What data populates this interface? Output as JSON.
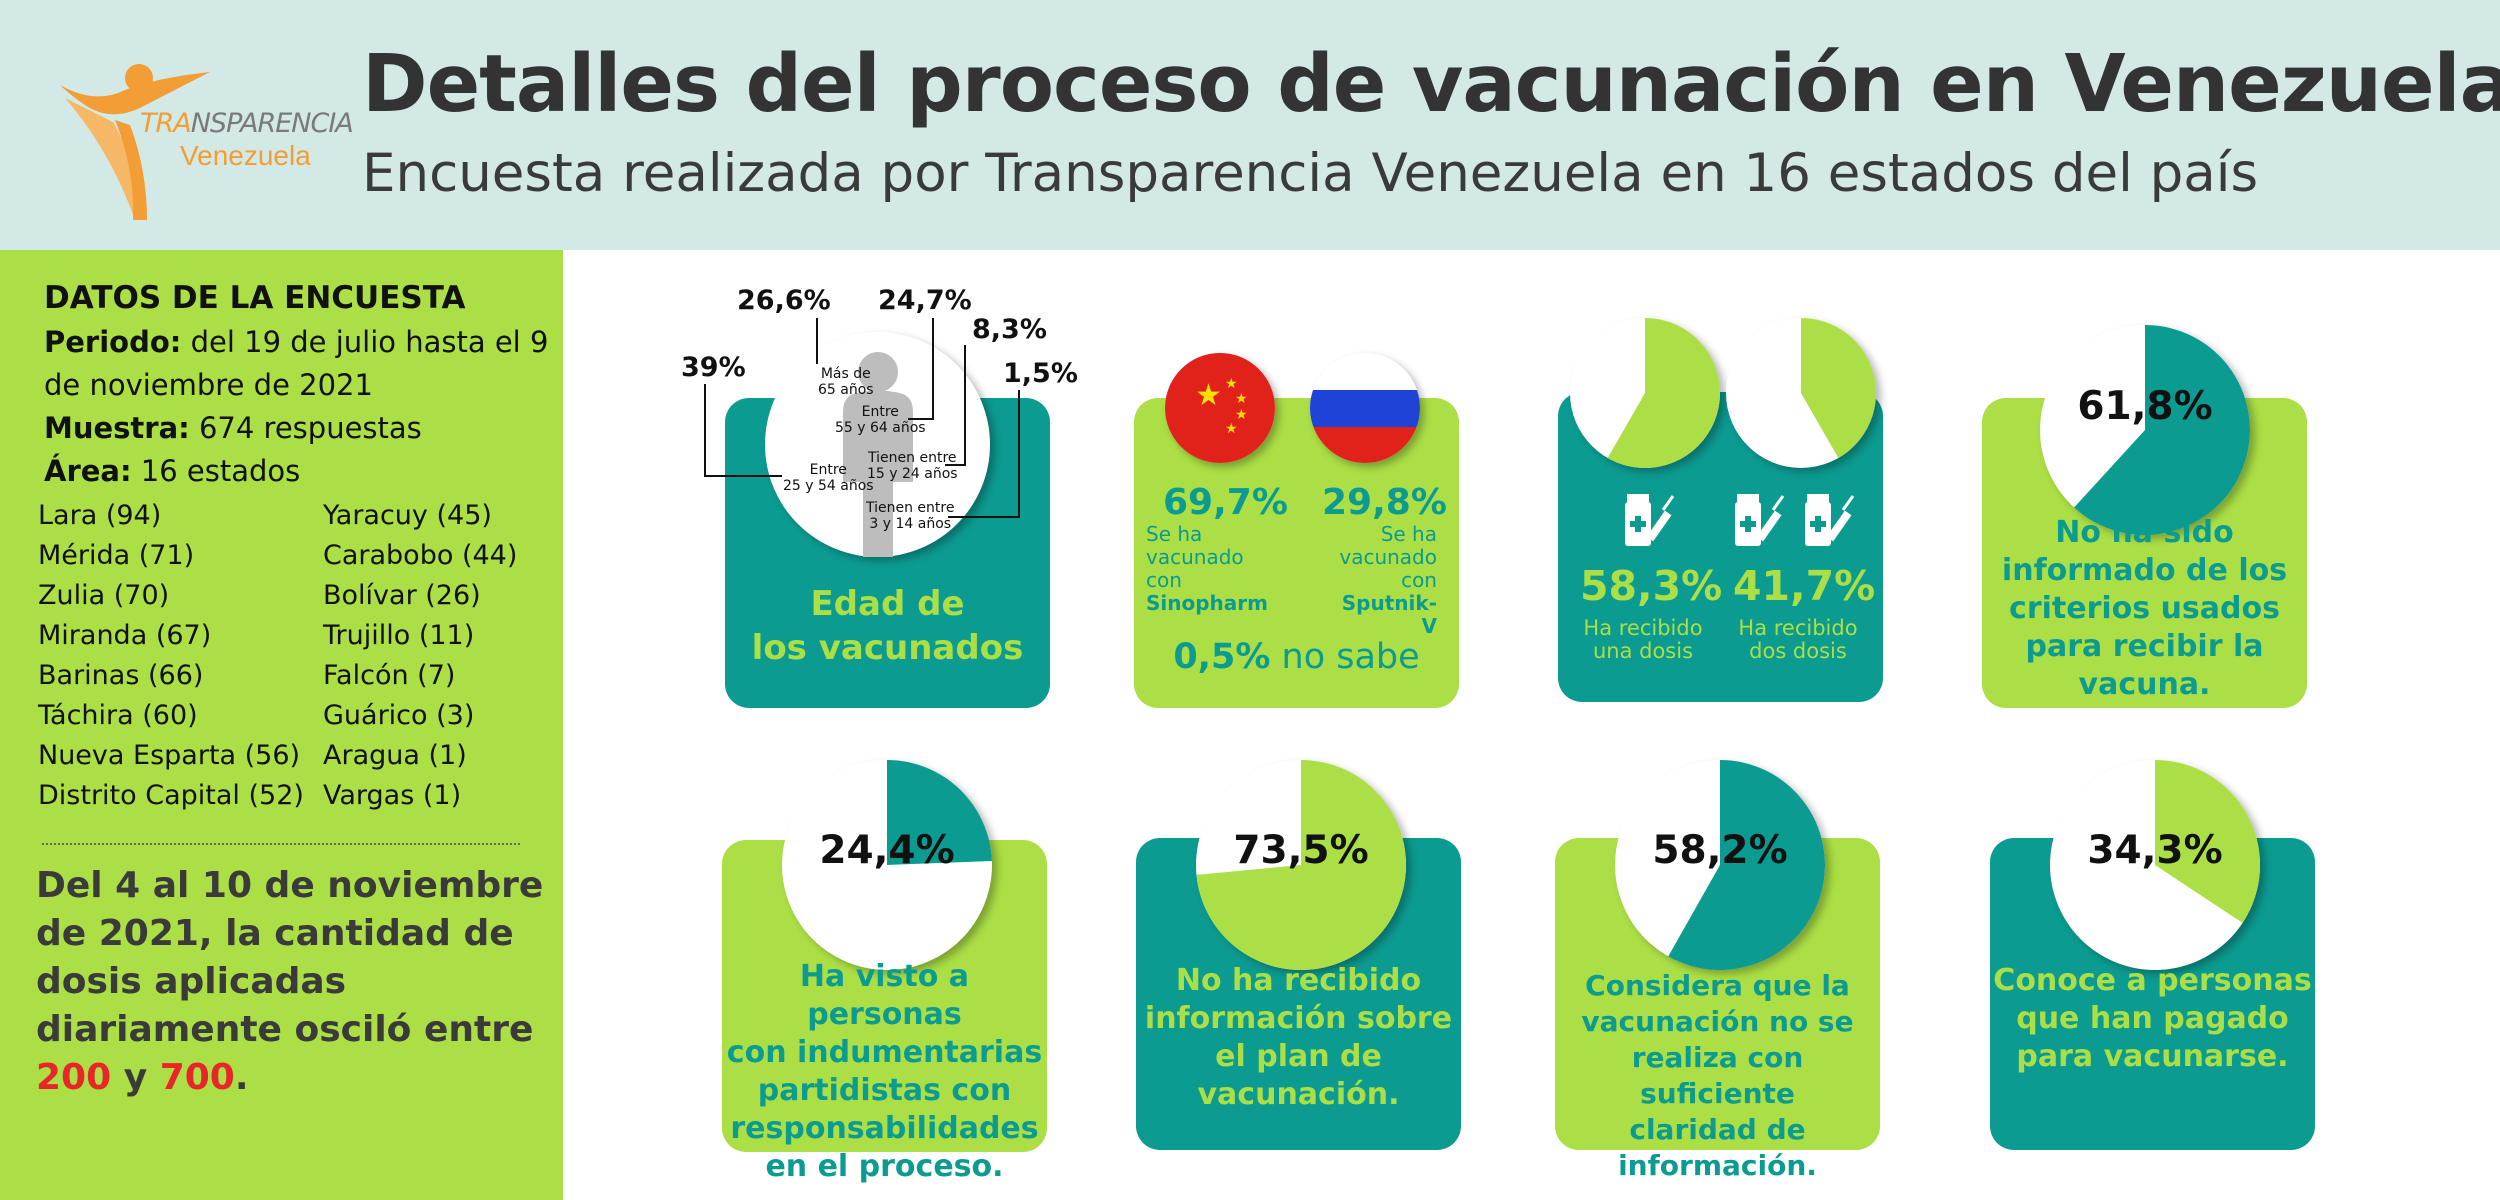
{
  "header": {
    "title": "Detalles del proceso de vacunación en Venezuela",
    "subtitle": "Encuesta realizada por Transparencia Venezuela en 16 estados del país",
    "logo_line1_a": "TRA",
    "logo_line1_b": "NSPARENCIA",
    "logo_line2": "Venezuela"
  },
  "sidebar": {
    "heading": "DATOS DE LA ENCUESTA",
    "periodo_label": "Periodo:",
    "periodo_value": " del 19 de julio hasta el 9 de noviembre de 2021",
    "muestra_label": "Muestra:",
    "muestra_value": " 674 respuestas",
    "area_label": "Área:",
    "area_value": " 16 estados",
    "states_left": [
      "Lara (94)",
      "Mérida (71)",
      "Zulia (70)",
      "Miranda (67)",
      "Barinas (66)",
      "Táchira (60)",
      "Nueva Esparta (56)",
      "Distrito Capital (52)"
    ],
    "states_right": [
      "Yaracuy (45)",
      "Carabobo (44)",
      "Bolívar (26)",
      "Trujillo (11)",
      "Falcón (7)",
      "Guárico (3)",
      "Aragua (1)",
      "Vargas (1)"
    ],
    "note_text": "Del 4 al 10 de noviembre de 2021, la cantidad de dosis aplicadas diariamente osciló entre ",
    "note_low": "200",
    "note_and": " y ",
    "note_high": "700",
    "note_end": "."
  },
  "age_card": {
    "caption_line1": "Edad de",
    "caption_line2": "los vacunados",
    "groups": [
      {
        "pct": "26,6%",
        "label_line1": "Más de",
        "label_line2": "65 años"
      },
      {
        "pct": "24,7%",
        "label_line1": "Entre",
        "label_line2": "55 y 64 años"
      },
      {
        "pct": "8,3%",
        "label_line1": "Tienen entre",
        "label_line2": "15 y 24 años"
      },
      {
        "pct": "1,5%",
        "label_line1": "Tienen entre",
        "label_line2": "3 y 14 años"
      },
      {
        "pct": "39%",
        "label_line1": "Entre",
        "label_line2": "25 y 54 años"
      }
    ]
  },
  "vaccine_card": {
    "sinopharm_pct": "69,7%",
    "sinopharm_text": [
      "Se ha",
      "vacunado",
      "con",
      "Sinopharm"
    ],
    "sputnik_pct": "29,8%",
    "sputnik_text": [
      "Se ha",
      "vacunado",
      "con",
      "Sputnik-V"
    ],
    "unknown_pct": "0,5%",
    "unknown_text": " no sabe"
  },
  "dose_card": {
    "one_pct": "58,3%",
    "one_text": [
      "Ha recibido",
      "una dosis"
    ],
    "two_pct": "41,7%",
    "two_text": [
      "Ha recibido",
      "dos dosis"
    ]
  },
  "stats": [
    {
      "pct": "61,8%",
      "caption": [
        "No ha sido",
        "informado de los",
        "criterios usados",
        "para recibir la",
        "vacuna."
      ]
    },
    {
      "pct": "24,4%",
      "caption": [
        "Ha visto a personas",
        "con indumentarias",
        "partidistas con",
        "responsabilidades",
        "en el proceso."
      ]
    },
    {
      "pct": "73,5%",
      "caption": [
        "No ha recibido",
        "información sobre",
        "el plan de",
        "vacunación."
      ]
    },
    {
      "pct": "58,2%",
      "caption": [
        "Considera que la",
        "vacunación no se",
        "realiza con suficiente",
        "claridad de",
        "información."
      ]
    },
    {
      "pct": "34,3%",
      "caption": [
        "Conoce a personas",
        "que han pagado",
        "para vacunarse."
      ]
    }
  ],
  "chart_data": {
    "type": "pie",
    "charts": [
      {
        "value": 61.8,
        "unit": "%"
      },
      {
        "value": 24.4,
        "unit": "%"
      },
      {
        "value": 73.5,
        "unit": "%"
      },
      {
        "value": 58.2,
        "unit": "%"
      },
      {
        "value": 34.3,
        "unit": "%"
      },
      {
        "value": 58.3,
        "unit": "%"
      },
      {
        "value": 41.7,
        "unit": "%"
      }
    ]
  },
  "colors": {
    "teal": "#0c9b91",
    "lime": "#abdf45",
    "header_bg": "#d3e9e6",
    "red": "#e8262a",
    "orange": "#f39d36"
  }
}
